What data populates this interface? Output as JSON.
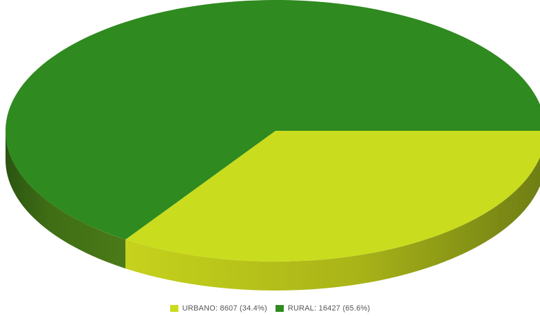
{
  "chart_data": {
    "type": "pie",
    "style": "3d",
    "slices": [
      {
        "label": "URBANO",
        "value": 8607,
        "percent": 34.4,
        "color": "#c9dc1e",
        "legend_text": "URBANO: 8607 (34.4%)"
      },
      {
        "label": "RURAL",
        "value": 16427,
        "percent": 65.6,
        "color": "#2f8a1f",
        "legend_text": "RURAL: 16427 (65.6%)"
      }
    ],
    "legend_position": "bottom",
    "title": ""
  }
}
